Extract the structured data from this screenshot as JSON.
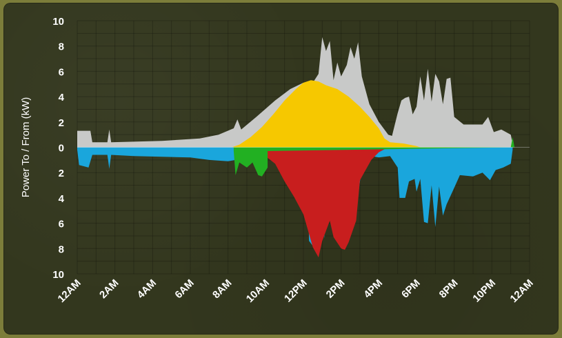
{
  "chart_data": {
    "type": "area",
    "ylabel": "Power To / From (kW)",
    "y_tick_labels": [
      "10",
      "8",
      "6",
      "4",
      "2",
      "0",
      "2",
      "4",
      "6",
      "8",
      "10"
    ],
    "y_tick_values": [
      10,
      8,
      6,
      4,
      2,
      0,
      -2,
      -4,
      -6,
      -8,
      -10
    ],
    "x_tick_labels": [
      "12AM",
      "2AM",
      "4AM",
      "6AM",
      "8AM",
      "10AM",
      "12PM",
      "2PM",
      "4PM",
      "6PM",
      "8PM",
      "10PM",
      "12AM"
    ],
    "x_tick_hours": [
      0,
      2,
      4,
      6,
      8,
      10,
      12,
      14,
      16,
      18,
      20,
      22,
      24
    ],
    "xlim_hours": [
      0,
      24
    ],
    "ylim": [
      -10,
      10
    ],
    "grid": true,
    "colors": {
      "consumption": "#c8c9c8",
      "solar": "#f6c800",
      "grid": "#1aa6dc",
      "battery": "#c81e1e",
      "green": "#22b022"
    },
    "series": [
      {
        "color_key": "consumption",
        "points": [
          [
            0,
            1.3
          ],
          [
            0.7,
            1.3
          ],
          [
            0.8,
            0.4
          ],
          [
            1.6,
            0.4
          ],
          [
            1.7,
            1.4
          ],
          [
            1.8,
            0.4
          ],
          [
            4.5,
            0.5
          ],
          [
            6.5,
            0.7
          ],
          [
            7.5,
            1.0
          ],
          [
            8.3,
            1.5
          ],
          [
            8.5,
            2.2
          ],
          [
            8.7,
            1.4
          ],
          [
            9.5,
            2.4
          ],
          [
            10.5,
            3.7
          ],
          [
            11.3,
            4.6
          ],
          [
            12,
            5.1
          ],
          [
            12.5,
            5.1
          ],
          [
            12.8,
            5.8
          ],
          [
            13.0,
            8.7
          ],
          [
            13.2,
            7.6
          ],
          [
            13.4,
            8.4
          ],
          [
            13.6,
            5.3
          ],
          [
            13.8,
            6.7
          ],
          [
            14.0,
            5.6
          ],
          [
            14.3,
            6.5
          ],
          [
            14.5,
            7.9
          ],
          [
            14.7,
            7.0
          ],
          [
            14.9,
            8.3
          ],
          [
            15.1,
            5.6
          ],
          [
            15.5,
            3.4
          ],
          [
            16,
            2.0
          ],
          [
            16.5,
            1.0
          ],
          [
            16.7,
            0.9
          ],
          [
            17,
            2.7
          ],
          [
            17.2,
            3.7
          ],
          [
            17.4,
            3.9
          ],
          [
            17.6,
            4.0
          ],
          [
            17.8,
            2.6
          ],
          [
            18.0,
            3.2
          ],
          [
            18.2,
            5.6
          ],
          [
            18.4,
            3.7
          ],
          [
            18.6,
            6.2
          ],
          [
            18.8,
            3.6
          ],
          [
            19.0,
            5.8
          ],
          [
            19.2,
            5.2
          ],
          [
            19.4,
            3.4
          ],
          [
            19.6,
            5.4
          ],
          [
            19.8,
            5.5
          ],
          [
            20.0,
            2.4
          ],
          [
            20.5,
            1.8
          ],
          [
            21.5,
            1.8
          ],
          [
            21.8,
            2.4
          ],
          [
            22.1,
            1.2
          ],
          [
            22.5,
            1.4
          ],
          [
            23.0,
            1.0
          ],
          [
            23.1,
            0.3
          ]
        ]
      },
      {
        "color_key": "solar",
        "points": [
          [
            8.2,
            0
          ],
          [
            8.6,
            0.2
          ],
          [
            9.2,
            0.8
          ],
          [
            9.8,
            1.6
          ],
          [
            10.4,
            2.6
          ],
          [
            11.0,
            3.7
          ],
          [
            11.6,
            4.6
          ],
          [
            12.0,
            5.1
          ],
          [
            12.4,
            5.3
          ],
          [
            12.8,
            5.2
          ],
          [
            13.2,
            4.9
          ],
          [
            13.8,
            4.6
          ],
          [
            14.4,
            4.0
          ],
          [
            15.0,
            3.2
          ],
          [
            15.5,
            2.4
          ],
          [
            16.0,
            1.5
          ],
          [
            16.3,
            0.7
          ],
          [
            16.6,
            0.4
          ],
          [
            17.3,
            0.3
          ],
          [
            18.0,
            0.1
          ],
          [
            18.2,
            0
          ]
        ]
      },
      {
        "color_key": "grid",
        "points": [
          [
            0,
            -0.2
          ],
          [
            0.1,
            -1.4
          ],
          [
            0.6,
            -1.6
          ],
          [
            0.8,
            -0.6
          ],
          [
            1.6,
            -0.6
          ],
          [
            1.7,
            -1.7
          ],
          [
            1.8,
            -0.6
          ],
          [
            3.0,
            -0.7
          ],
          [
            6.0,
            -0.8
          ],
          [
            7.0,
            -1.0
          ],
          [
            8.0,
            -1.1
          ],
          [
            8.4,
            -1.0
          ],
          [
            9.5,
            -0.9
          ],
          [
            10.5,
            -0.7
          ],
          [
            11.0,
            -0.5
          ],
          [
            11.4,
            -0.4
          ],
          [
            11.7,
            -1.5
          ],
          [
            12.0,
            -0.9
          ],
          [
            12.2,
            -1.6
          ],
          [
            12.3,
            -7.4
          ],
          [
            12.5,
            -7.8
          ],
          [
            12.7,
            -5.6
          ],
          [
            12.8,
            -2.5
          ],
          [
            12.9,
            -6.3
          ],
          [
            13.0,
            -3.3
          ],
          [
            13.1,
            -7.2
          ],
          [
            13.3,
            -3.1
          ],
          [
            13.6,
            -2.4
          ],
          [
            13.8,
            -5.6
          ],
          [
            14.0,
            -6.6
          ],
          [
            14.2,
            -6.8
          ],
          [
            14.4,
            -4.8
          ],
          [
            14.6,
            -6.0
          ],
          [
            14.9,
            -3.8
          ],
          [
            15.1,
            -1.6
          ],
          [
            15.2,
            -0.9
          ],
          [
            15.6,
            -0.7
          ],
          [
            16.0,
            -0.8
          ],
          [
            16.6,
            -0.7
          ],
          [
            17.0,
            -1.6
          ],
          [
            17.1,
            -4.0
          ],
          [
            17.4,
            -4.0
          ],
          [
            17.6,
            -2.7
          ],
          [
            17.9,
            -2.5
          ],
          [
            18.0,
            -3.5
          ],
          [
            18.2,
            -2.5
          ],
          [
            18.4,
            -5.9
          ],
          [
            18.6,
            -6.0
          ],
          [
            18.8,
            -3.0
          ],
          [
            19.0,
            -6.3
          ],
          [
            19.2,
            -3.1
          ],
          [
            19.4,
            -5.4
          ],
          [
            19.6,
            -4.5
          ],
          [
            20.0,
            -3.2
          ],
          [
            20.3,
            -2.2
          ],
          [
            21.0,
            -2.3
          ],
          [
            21.5,
            -2.0
          ],
          [
            21.9,
            -2.6
          ],
          [
            22.2,
            -1.8
          ],
          [
            22.6,
            -1.6
          ],
          [
            23.0,
            -1.3
          ],
          [
            23.1,
            -0.2
          ]
        ]
      },
      {
        "color_key": "battery",
        "points": [
          [
            9.4,
            0
          ],
          [
            10.5,
            -1.3
          ],
          [
            11.0,
            -2.7
          ],
          [
            11.5,
            -3.9
          ],
          [
            12.0,
            -5.3
          ],
          [
            12.5,
            -7.9
          ],
          [
            12.8,
            -8.7
          ],
          [
            13.0,
            -7.4
          ],
          [
            13.4,
            -5.8
          ],
          [
            13.6,
            -7.1
          ],
          [
            14.0,
            -8.0
          ],
          [
            14.2,
            -8.1
          ],
          [
            14.4,
            -7.5
          ],
          [
            14.8,
            -5.8
          ],
          [
            15.0,
            -2.6
          ],
          [
            15.3,
            -1.8
          ],
          [
            15.6,
            -1.0
          ],
          [
            16.0,
            -0.4
          ],
          [
            16.5,
            0
          ]
        ]
      },
      {
        "color_key": "green",
        "points": [
          [
            8.3,
            -0.3
          ],
          [
            8.4,
            -2.2
          ],
          [
            8.6,
            -1.2
          ],
          [
            9.0,
            -1.6
          ],
          [
            9.3,
            -1.2
          ],
          [
            9.6,
            -2.2
          ],
          [
            9.8,
            -2.3
          ],
          [
            10.1,
            -1.6
          ],
          [
            10.1,
            -0.3
          ],
          [
            23.0,
            0.0
          ],
          [
            23.1,
            0.8
          ],
          [
            23.2,
            0.0
          ]
        ]
      }
    ]
  }
}
